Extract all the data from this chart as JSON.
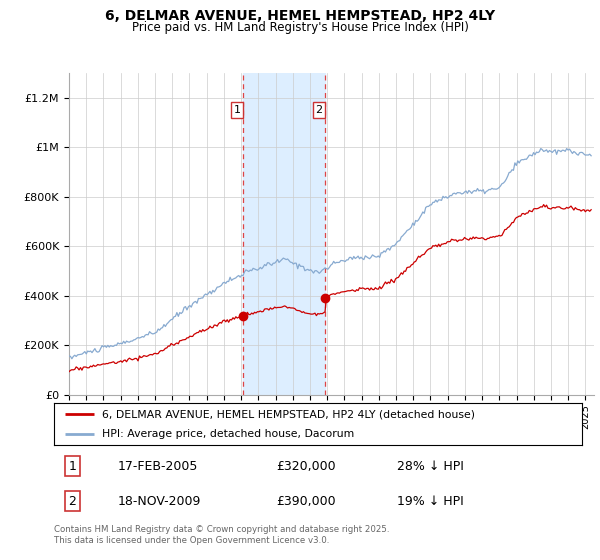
{
  "title": "6, DELMAR AVENUE, HEMEL HEMPSTEAD, HP2 4LY",
  "subtitle": "Price paid vs. HM Land Registry's House Price Index (HPI)",
  "xlim_start": 1995.0,
  "xlim_end": 2025.5,
  "ylim_min": 0,
  "ylim_max": 1300000,
  "yticks": [
    0,
    200000,
    400000,
    600000,
    800000,
    1000000,
    1200000
  ],
  "ytick_labels": [
    "£0",
    "£200K",
    "£400K",
    "£600K",
    "£800K",
    "£1M",
    "£1.2M"
  ],
  "sale1_date": 2005.12,
  "sale1_price": 320000,
  "sale2_date": 2009.88,
  "sale2_price": 390000,
  "shade_color": "#ddeeff",
  "sale_line_color": "#cc0000",
  "hpi_line_color": "#88aad0",
  "legend_entries": [
    "6, DELMAR AVENUE, HEMEL HEMPSTEAD, HP2 4LY (detached house)",
    "HPI: Average price, detached house, Dacorum"
  ],
  "annotation1": [
    "1",
    "17-FEB-2005",
    "£320,000",
    "28% ↓ HPI"
  ],
  "annotation2": [
    "2",
    "18-NOV-2009",
    "£390,000",
    "19% ↓ HPI"
  ],
  "footnote": "Contains HM Land Registry data © Crown copyright and database right 2025.\nThis data is licensed under the Open Government Licence v3.0.",
  "background_color": "#ffffff",
  "grid_color": "#cccccc"
}
